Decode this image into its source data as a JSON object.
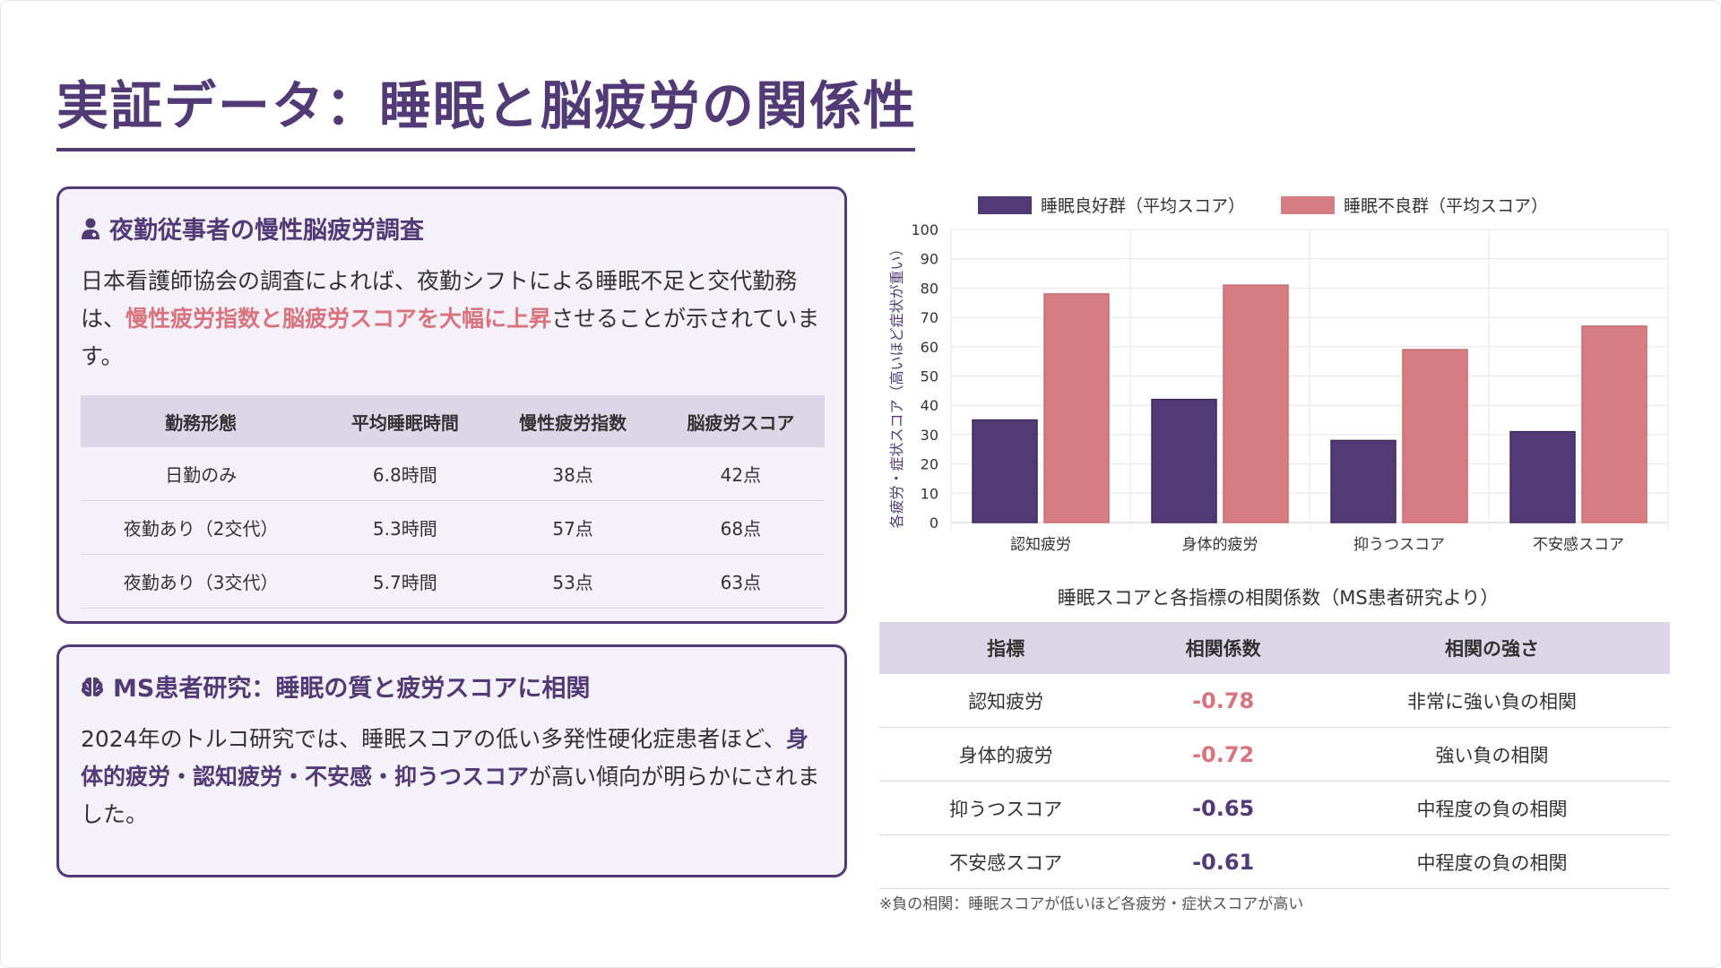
{
  "title": "実証データ：睡眠と脳疲労の関係性",
  "colors": {
    "accent": "#523a76",
    "good_group": "#523a76",
    "bad_group": "#d67d83",
    "highlight": "#d9737e",
    "table_header_bg": "#ddd6e6",
    "card_bg": "#f4f2f8"
  },
  "card1": {
    "icon": "user-md-icon",
    "heading": "夜勤従事者の慢性脳疲労調査",
    "body_before": "日本看護師協会の調査によれば、夜勤シフトによる睡眠不足と交代勤務は、",
    "body_highlight": "慢性疲労指数と脳疲労スコアを大幅に上昇",
    "body_after": "させることが示されています。",
    "table": {
      "headers": [
        "勤務形態",
        "平均睡眠時間",
        "慢性疲労指数",
        "脳疲労スコア"
      ],
      "rows": [
        [
          "日勤のみ",
          "6.8時間",
          "38点",
          "42点"
        ],
        [
          "夜勤あり（2交代）",
          "5.3時間",
          "57点",
          "68点"
        ],
        [
          "夜勤あり（3交代）",
          "5.7時間",
          "53点",
          "63点"
        ]
      ]
    }
  },
  "card2": {
    "icon": "brain-icon",
    "heading": "MS患者研究：睡眠の質と疲労スコアに相関",
    "body_before": "2024年のトルコ研究では、睡眠スコアの低い多発性硬化症患者ほど、",
    "body_highlight": "身体的疲労・認知疲労・不安感・抑うつスコア",
    "body_after": "が高い傾向が明らかにされました。"
  },
  "chart_data": {
    "type": "bar",
    "categories": [
      "認知疲労",
      "身体的疲労",
      "抑うつスコア",
      "不安感スコア"
    ],
    "series": [
      {
        "name": "睡眠良好群（平均スコア）",
        "values": [
          35,
          42,
          28,
          31
        ],
        "color": "#523a76"
      },
      {
        "name": "睡眠不良群（平均スコア）",
        "values": [
          78,
          81,
          59,
          67
        ],
        "color": "#d67d83"
      }
    ],
    "ylabel": "各疲労・症状スコア（高いほど症状が重い）",
    "xlabel": "",
    "ylim": [
      0,
      100
    ],
    "yticks": [
      0,
      10,
      20,
      30,
      40,
      50,
      60,
      70,
      80,
      90,
      100
    ],
    "grid": true,
    "legend": "top"
  },
  "correlation": {
    "caption": "睡眠スコアと各指標の相関係数（MS患者研究より）",
    "headers": [
      "指標",
      "相関係数",
      "相関の強さ"
    ],
    "rows": [
      {
        "indicator": "認知疲労",
        "coef": "-0.78",
        "strength": "非常に強い負の相関",
        "color": "#d9737e"
      },
      {
        "indicator": "身体的疲労",
        "coef": "-0.72",
        "strength": "強い負の相関",
        "color": "#d9737e"
      },
      {
        "indicator": "抑うつスコア",
        "coef": "-0.65",
        "strength": "中程度の負の相関",
        "color": "#523a76"
      },
      {
        "indicator": "不安感スコア",
        "coef": "-0.61",
        "strength": "中程度の負の相関",
        "color": "#523a76"
      }
    ],
    "note": "※負の相関：睡眠スコアが低いほど各疲労・症状スコアが高い"
  }
}
